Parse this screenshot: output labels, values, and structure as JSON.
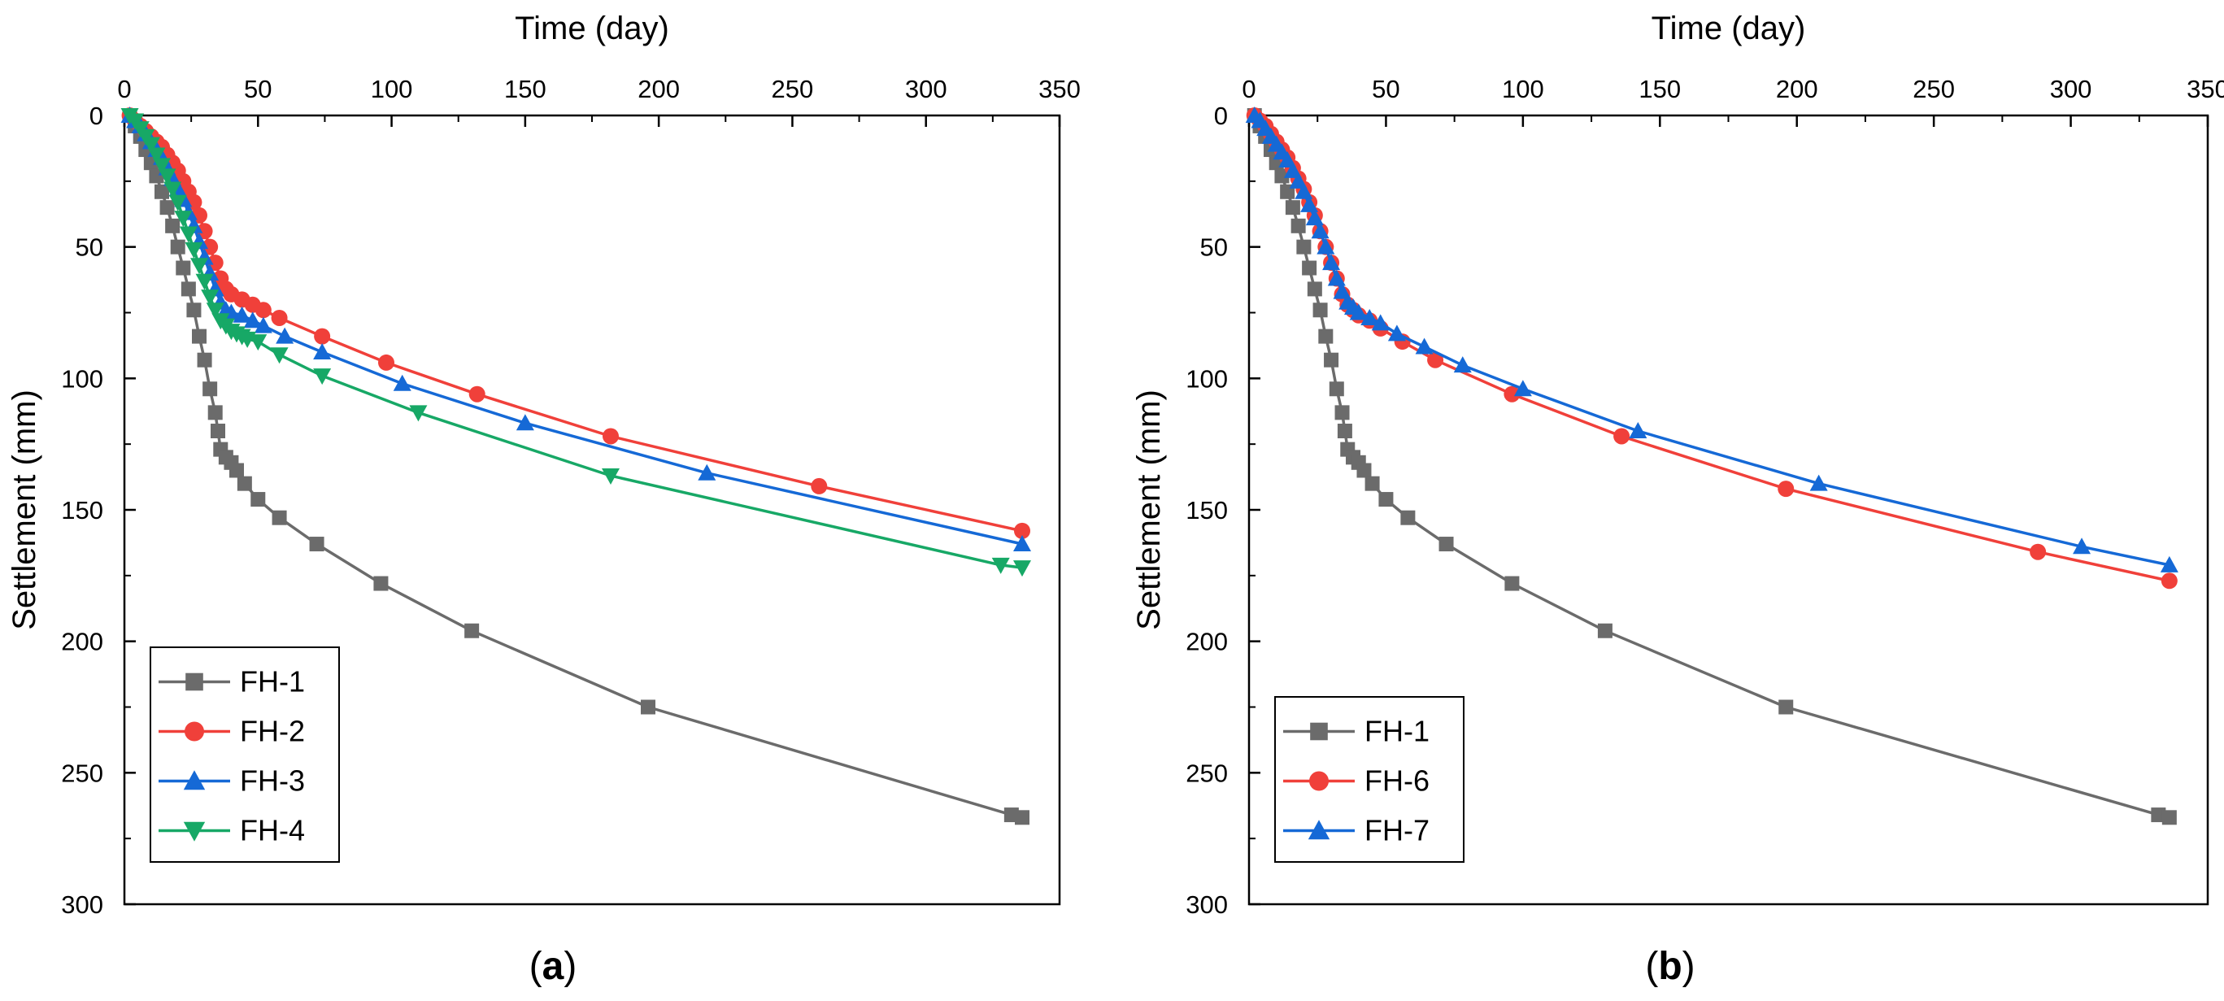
{
  "colors": {
    "FH-1": "#6b6b6b",
    "FH-2": "#f0403a",
    "FH-3": "#1569d6",
    "FH-4": "#17a866",
    "FH-6": "#f0403a",
    "FH-7": "#1569d6",
    "axis": "#000000"
  },
  "chart_data": [
    {
      "type": "line",
      "panel_label": "(a)",
      "title": "",
      "xlabel": "Time (day)",
      "ylabel": "Settlement (mm)",
      "xlim": [
        0,
        350
      ],
      "ylim": [
        0,
        300
      ],
      "x_axis_position": "top",
      "y_inverted": true,
      "xticks": [
        0,
        50,
        100,
        150,
        200,
        250,
        300,
        350
      ],
      "yticks": [
        0,
        50,
        100,
        150,
        200,
        250,
        300
      ],
      "legend": "bottom-left",
      "series": [
        {
          "name": "FH-1",
          "marker": "square",
          "x": [
            2,
            4,
            6,
            8,
            10,
            12,
            14,
            16,
            18,
            20,
            22,
            24,
            26,
            28,
            30,
            32,
            34,
            35,
            36,
            38,
            40,
            42,
            45,
            50,
            58,
            72,
            96,
            130,
            196,
            332,
            336
          ],
          "y": [
            0,
            4,
            8,
            13,
            18,
            23,
            29,
            35,
            42,
            50,
            58,
            66,
            74,
            84,
            93,
            104,
            113,
            120,
            127,
            130,
            132,
            135,
            140,
            146,
            153,
            163,
            178,
            196,
            225,
            266,
            267
          ]
        },
        {
          "name": "FH-2",
          "marker": "circle",
          "x": [
            2,
            4,
            6,
            8,
            10,
            12,
            14,
            16,
            18,
            20,
            22,
            24,
            26,
            28,
            30,
            32,
            34,
            36,
            38,
            40,
            44,
            48,
            52,
            58,
            74,
            98,
            132,
            182,
            260,
            336
          ],
          "y": [
            0,
            2,
            4,
            6,
            8,
            10,
            12,
            15,
            18,
            21,
            25,
            29,
            33,
            38,
            44,
            50,
            56,
            62,
            66,
            68,
            70,
            72,
            74,
            77,
            84,
            94,
            106,
            122,
            141,
            158
          ]
        },
        {
          "name": "FH-3",
          "marker": "triangle-up",
          "x": [
            2,
            4,
            6,
            8,
            10,
            12,
            14,
            16,
            18,
            20,
            22,
            24,
            26,
            28,
            30,
            32,
            34,
            36,
            38,
            40,
            44,
            48,
            52,
            60,
            74,
            104,
            150,
            218,
            336
          ],
          "y": [
            0,
            2,
            4,
            7,
            10,
            13,
            16,
            20,
            24,
            28,
            32,
            37,
            42,
            48,
            54,
            60,
            66,
            71,
            74,
            75,
            76,
            78,
            80,
            84,
            90,
            102,
            117,
            136,
            163
          ]
        },
        {
          "name": "FH-4",
          "marker": "triangle-down",
          "x": [
            2,
            4,
            6,
            8,
            10,
            12,
            14,
            16,
            18,
            20,
            22,
            24,
            26,
            28,
            30,
            32,
            34,
            36,
            38,
            40,
            42,
            44,
            46,
            50,
            58,
            74,
            110,
            182,
            328,
            336
          ],
          "y": [
            0,
            2,
            5,
            8,
            11,
            15,
            19,
            23,
            28,
            33,
            39,
            45,
            51,
            57,
            63,
            69,
            74,
            78,
            80,
            82,
            83,
            84,
            85,
            86,
            91,
            99,
            113,
            137,
            171,
            172
          ]
        }
      ]
    },
    {
      "type": "line",
      "panel_label": "(b)",
      "title": "",
      "xlabel": "Time (day)",
      "ylabel": "Settlement (mm)",
      "xlim": [
        0,
        350
      ],
      "ylim": [
        0,
        300
      ],
      "x_axis_position": "top",
      "y_inverted": true,
      "xticks": [
        0,
        50,
        100,
        150,
        200,
        250,
        300,
        350
      ],
      "yticks": [
        0,
        50,
        100,
        150,
        200,
        250,
        300
      ],
      "legend": "bottom-left",
      "series": [
        {
          "name": "FH-1",
          "marker": "square",
          "x": [
            2,
            4,
            6,
            8,
            10,
            12,
            14,
            16,
            18,
            20,
            22,
            24,
            26,
            28,
            30,
            32,
            34,
            35,
            36,
            38,
            40,
            42,
            45,
            50,
            58,
            72,
            96,
            130,
            196,
            332,
            336
          ],
          "y": [
            0,
            4,
            8,
            13,
            18,
            23,
            29,
            35,
            42,
            50,
            58,
            66,
            74,
            84,
            93,
            104,
            113,
            120,
            127,
            130,
            132,
            135,
            140,
            146,
            153,
            163,
            178,
            196,
            225,
            266,
            267
          ]
        },
        {
          "name": "FH-6",
          "marker": "circle",
          "x": [
            2,
            4,
            6,
            8,
            10,
            12,
            14,
            16,
            18,
            20,
            22,
            24,
            26,
            28,
            30,
            32,
            34,
            36,
            38,
            40,
            44,
            48,
            56,
            68,
            96,
            136,
            196,
            288,
            336
          ],
          "y": [
            0,
            2,
            4,
            7,
            10,
            13,
            16,
            20,
            24,
            28,
            33,
            38,
            44,
            50,
            56,
            62,
            68,
            72,
            74,
            76,
            78,
            81,
            86,
            93,
            106,
            122,
            142,
            166,
            177
          ]
        },
        {
          "name": "FH-7",
          "marker": "triangle-up",
          "x": [
            2,
            4,
            6,
            8,
            10,
            12,
            14,
            16,
            18,
            20,
            22,
            24,
            26,
            28,
            30,
            32,
            34,
            36,
            38,
            40,
            44,
            48,
            54,
            64,
            78,
            100,
            142,
            208,
            304,
            336
          ],
          "y": [
            0,
            2,
            5,
            8,
            11,
            14,
            17,
            21,
            25,
            29,
            34,
            39,
            44,
            50,
            56,
            62,
            67,
            71,
            73,
            75,
            77,
            79,
            83,
            88,
            95,
            104,
            120,
            140,
            164,
            171
          ]
        }
      ]
    }
  ]
}
